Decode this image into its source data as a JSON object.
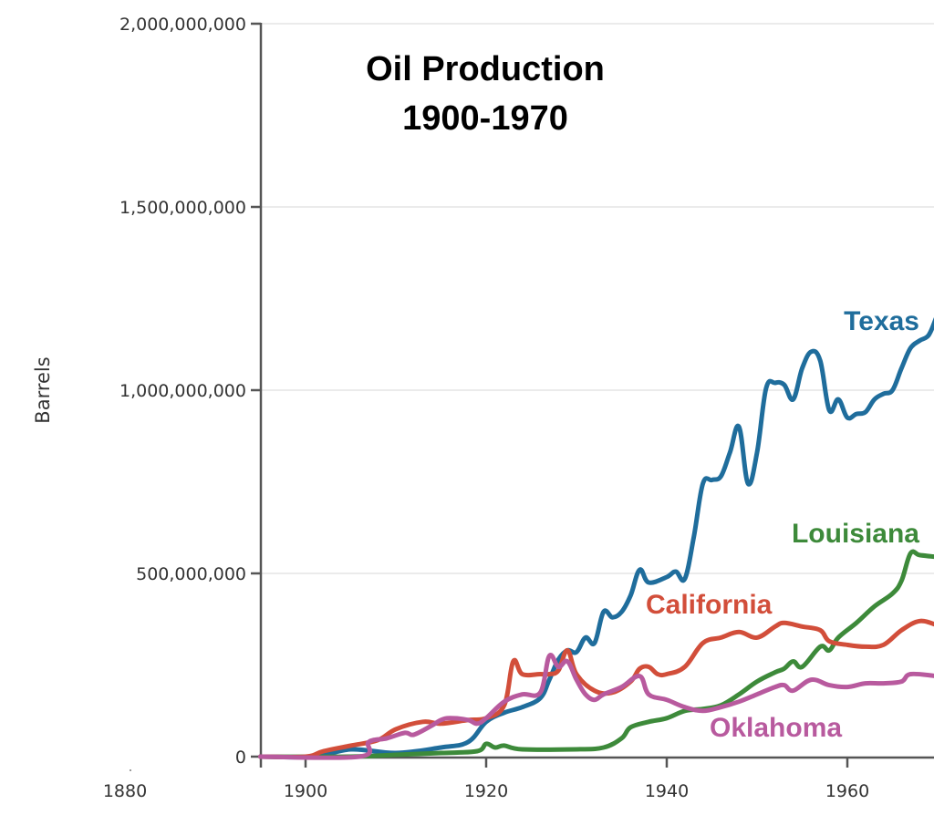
{
  "chart_data": {
    "type": "line",
    "title": "Oil Production\n1900-1970",
    "title_lines": [
      "Oil Production",
      "1900-1970"
    ],
    "xlabel": "",
    "ylabel": "Barrels",
    "xlim": [
      1895,
      1970
    ],
    "ylim": [
      0,
      2000000000
    ],
    "x_ticks": [
      1880,
      1900,
      1920,
      1940,
      1960
    ],
    "x_tick_labels": [
      "1880",
      "1900",
      "1920",
      "1940",
      "1960"
    ],
    "y_ticks": [
      0,
      500000000,
      1000000000,
      1500000000,
      2000000000
    ],
    "y_tick_labels": [
      "0",
      "500,000,000",
      "1,000,000,000",
      "1,500,000,000",
      "2,000,000,000"
    ],
    "grid": "horizontal",
    "legend": "inline labels",
    "series": [
      {
        "name": "Texas",
        "color": "#1f6d9c",
        "x": [
          1895,
          1901,
          1905,
          1910,
          1915,
          1918,
          1920,
          1922,
          1924,
          1926,
          1927,
          1928,
          1929,
          1930,
          1931,
          1932,
          1933,
          1934,
          1935,
          1936,
          1937,
          1938,
          1940,
          1941,
          1942,
          1943,
          1944,
          1945,
          1946,
          1947,
          1948,
          1949,
          1950,
          1951,
          1952,
          1953,
          1954,
          1955,
          1956,
          1957,
          1958,
          1959,
          1960,
          1961,
          1962,
          1963,
          1964,
          1965,
          1966,
          1967,
          1968,
          1969,
          1970
        ],
        "y": [
          0,
          0,
          20000000,
          10000000,
          25000000,
          40000000,
          95000000,
          120000000,
          135000000,
          160000000,
          210000000,
          265000000,
          290000000,
          285000000,
          325000000,
          310000000,
          395000000,
          380000000,
          395000000,
          440000000,
          510000000,
          475000000,
          490000000,
          505000000,
          485000000,
          600000000,
          745000000,
          755000000,
          765000000,
          830000000,
          900000000,
          745000000,
          830000000,
          1005000000,
          1020000000,
          1015000000,
          975000000,
          1060000000,
          1105000000,
          1080000000,
          945000000,
          975000000,
          925000000,
          935000000,
          940000000,
          975000000,
          990000000,
          1000000000,
          1060000000,
          1115000000,
          1135000000,
          1150000000,
          1195000000
        ]
      },
      {
        "name": "California",
        "color": "#d24e3a",
        "x": [
          1895,
          1900,
          1902,
          1905,
          1908,
          1910,
          1913,
          1915,
          1918,
          1920,
          1922,
          1923,
          1924,
          1926,
          1927,
          1928,
          1929,
          1930,
          1932,
          1934,
          1936,
          1937,
          1938,
          1939,
          1940,
          1942,
          1944,
          1946,
          1948,
          1950,
          1952,
          1953,
          1955,
          1957,
          1958,
          1960,
          1962,
          1964,
          1966,
          1968,
          1970
        ],
        "y": [
          0,
          0,
          15000000,
          30000000,
          45000000,
          75000000,
          95000000,
          90000000,
          100000000,
          105000000,
          140000000,
          260000000,
          225000000,
          225000000,
          225000000,
          235000000,
          290000000,
          225000000,
          180000000,
          175000000,
          205000000,
          240000000,
          245000000,
          225000000,
          225000000,
          245000000,
          310000000,
          325000000,
          340000000,
          325000000,
          355000000,
          365000000,
          355000000,
          345000000,
          315000000,
          305000000,
          300000000,
          305000000,
          345000000,
          370000000,
          360000000
        ]
      },
      {
        "name": "Louisiana",
        "color": "#3d8a3a",
        "x": [
          1895,
          1905,
          1910,
          1915,
          1919,
          1920,
          1921,
          1922,
          1924,
          1930,
          1933,
          1935,
          1936,
          1938,
          1940,
          1942,
          1944,
          1946,
          1948,
          1950,
          1952,
          1953,
          1954,
          1955,
          1957,
          1958,
          1959,
          1961,
          1963,
          1965,
          1966,
          1967,
          1968,
          1970
        ],
        "y": [
          0,
          0,
          5000000,
          10000000,
          15000000,
          35000000,
          25000000,
          30000000,
          20000000,
          20000000,
          25000000,
          50000000,
          80000000,
          95000000,
          105000000,
          125000000,
          130000000,
          140000000,
          170000000,
          205000000,
          230000000,
          240000000,
          260000000,
          245000000,
          300000000,
          290000000,
          325000000,
          365000000,
          410000000,
          445000000,
          480000000,
          555000000,
          550000000,
          545000000
        ]
      },
      {
        "name": "Oklahoma",
        "color": "#b85a9e",
        "x": [
          1895,
          1906,
          1907,
          1909,
          1911,
          1912,
          1914,
          1915,
          1916,
          1918,
          1919,
          1920,
          1922,
          1924,
          1926,
          1927,
          1928,
          1929,
          1930,
          1931,
          1932,
          1933,
          1935,
          1937,
          1938,
          1940,
          1942,
          1944,
          1946,
          1948,
          1950,
          1952,
          1953,
          1954,
          1956,
          1958,
          1960,
          1962,
          1964,
          1966,
          1967,
          1970
        ],
        "y": [
          0,
          0,
          40000000,
          50000000,
          65000000,
          60000000,
          85000000,
          100000000,
          105000000,
          100000000,
          90000000,
          105000000,
          150000000,
          170000000,
          175000000,
          275000000,
          245000000,
          260000000,
          210000000,
          170000000,
          155000000,
          170000000,
          190000000,
          220000000,
          170000000,
          155000000,
          135000000,
          125000000,
          135000000,
          150000000,
          170000000,
          190000000,
          195000000,
          180000000,
          210000000,
          195000000,
          190000000,
          200000000,
          200000000,
          205000000,
          225000000,
          220000000
        ]
      }
    ]
  }
}
